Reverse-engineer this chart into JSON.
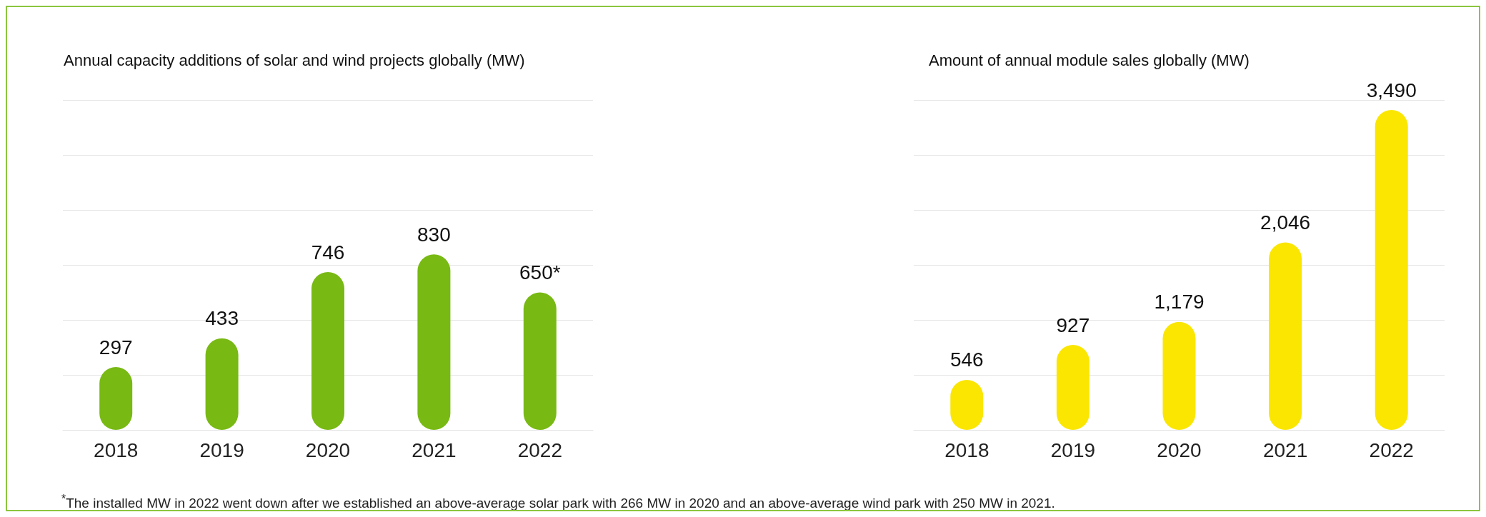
{
  "chart_data": [
    {
      "type": "bar",
      "title": "Annual capacity additions of solar and wind projects globally (MW)",
      "categories": [
        "2018",
        "2019",
        "2020",
        "2021",
        "2022"
      ],
      "values": [
        297,
        433,
        746,
        830,
        650
      ],
      "value_labels": [
        "297",
        "433",
        "746",
        "830",
        "650*"
      ],
      "color": "#78b913",
      "ylim": [
        0,
        1560
      ],
      "yticks": [
        {
          "value": 0,
          "label": null
        },
        {
          "value": 260,
          "label": null
        },
        {
          "value": 520,
          "label": null
        },
        {
          "value": 780,
          "label": null
        },
        {
          "value": 1040,
          "label": null
        },
        {
          "value": 1300,
          "label": null
        },
        {
          "value": 1560,
          "label": null
        }
      ],
      "grid": "y",
      "tick_labels": "x",
      "annotations": [
        "$^{*}$The installed MW in 2022 went down after we established an above-average solar park with 266 MW  in 2020 and an above-average wind park with 250 MW  in 2021."
      ]
    },
    {
      "type": "bar",
      "title": "Amount of annual module sales globally (MW)",
      "categories": [
        "2018",
        "2019",
        "2020",
        "2021",
        "2022"
      ],
      "values": [
        546,
        927,
        1179,
        2046,
        3490
      ],
      "value_labels": [
        "546",
        "927",
        "1,179",
        "2,046",
        "3,490"
      ],
      "color": "#fae600",
      "ylim": [
        0,
        3600
      ],
      "yticks": [
        {
          "value": 0,
          "label": null
        },
        {
          "value": 600,
          "label": null
        },
        {
          "value": 1200,
          "label": null
        },
        {
          "value": 1800,
          "label": null
        },
        {
          "value": 2400,
          "label": null
        },
        {
          "value": 3000,
          "label": null
        },
        {
          "value": 3600,
          "label": null
        }
      ],
      "grid": "y",
      "tick_labels": "x"
    }
  ]
}
